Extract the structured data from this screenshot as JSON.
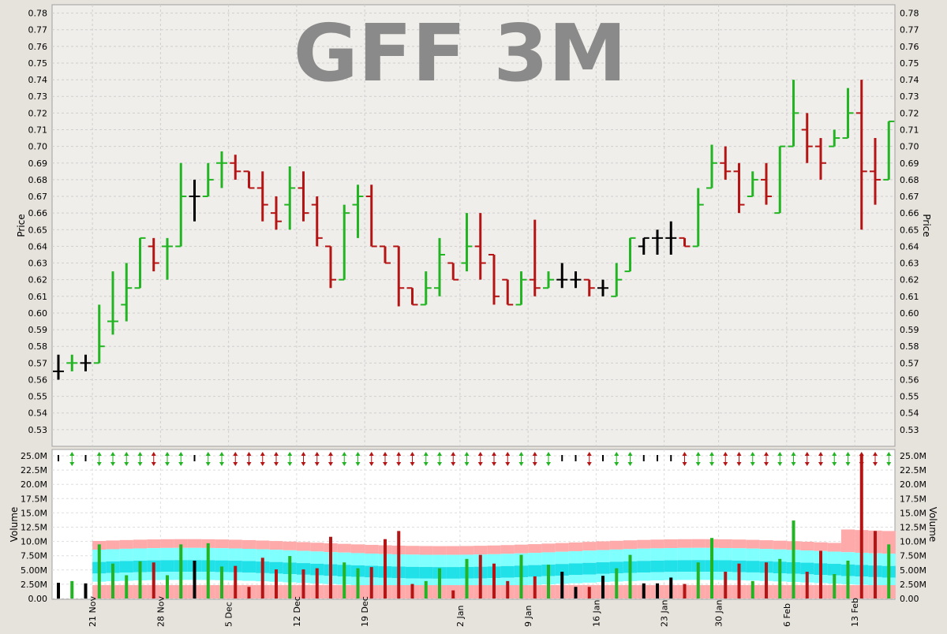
{
  "title": "GFF 3M",
  "colors": {
    "up": "#22b422",
    "down": "#b41414",
    "neutral": "#000000",
    "plot_bg": "#f0eeea",
    "volume_bg": "#ffffff",
    "band_outer": "#ffaaaa",
    "band_mid": "#80ffff",
    "band_inner": "#20e0e8",
    "title_color": "#8a8a8a"
  },
  "chart_data": [
    {
      "type": "ohlc",
      "title": "GFF 3M",
      "ylabel": "Price",
      "ylim": [
        0.52,
        0.785
      ],
      "y_ticks": [
        "0.53",
        "0.54",
        "0.55",
        "0.56",
        "0.57",
        "0.58",
        "0.59",
        "0.60",
        "0.61",
        "0.62",
        "0.63",
        "0.64",
        "0.65",
        "0.66",
        "0.67",
        "0.68",
        "0.69",
        "0.70",
        "0.71",
        "0.72",
        "0.73",
        "0.74",
        "0.75",
        "0.76",
        "0.77",
        "0.78"
      ],
      "x_date_labels": [
        "21 Nov",
        "28 Nov",
        "5 Dec",
        "12 Dec",
        "19 Dec",
        "2 Jan",
        "9 Jan",
        "16 Jan",
        "23 Jan",
        "30 Jan",
        "6 Feb",
        "13 Feb"
      ],
      "x_label_bar_index": [
        2.5,
        7.5,
        12.5,
        17.5,
        22.5,
        29.5,
        34.5,
        39.5,
        44.5,
        48.5,
        53.5,
        58.5
      ],
      "grid": true,
      "bars": [
        {
          "o": 0.565,
          "h": 0.575,
          "l": 0.56,
          "c": 0.565,
          "dir": "neutral"
        },
        {
          "o": 0.57,
          "h": 0.575,
          "l": 0.565,
          "c": 0.57,
          "dir": "up"
        },
        {
          "o": 0.57,
          "h": 0.575,
          "l": 0.565,
          "c": 0.57,
          "dir": "neutral"
        },
        {
          "o": 0.57,
          "h": 0.605,
          "l": 0.57,
          "c": 0.58,
          "dir": "up"
        },
        {
          "o": 0.595,
          "h": 0.625,
          "l": 0.587,
          "c": 0.595,
          "dir": "up"
        },
        {
          "o": 0.605,
          "h": 0.63,
          "l": 0.595,
          "c": 0.615,
          "dir": "up"
        },
        {
          "o": 0.615,
          "h": 0.645,
          "l": 0.615,
          "c": 0.645,
          "dir": "up"
        },
        {
          "o": 0.64,
          "h": 0.645,
          "l": 0.625,
          "c": 0.63,
          "dir": "down"
        },
        {
          "o": 0.64,
          "h": 0.645,
          "l": 0.62,
          "c": 0.64,
          "dir": "up"
        },
        {
          "o": 0.64,
          "h": 0.69,
          "l": 0.64,
          "c": 0.67,
          "dir": "up"
        },
        {
          "o": 0.67,
          "h": 0.68,
          "l": 0.655,
          "c": 0.67,
          "dir": "neutral"
        },
        {
          "o": 0.67,
          "h": 0.69,
          "l": 0.67,
          "c": 0.68,
          "dir": "up"
        },
        {
          "o": 0.69,
          "h": 0.697,
          "l": 0.675,
          "c": 0.69,
          "dir": "up"
        },
        {
          "o": 0.69,
          "h": 0.695,
          "l": 0.68,
          "c": 0.685,
          "dir": "down"
        },
        {
          "o": 0.685,
          "h": 0.685,
          "l": 0.675,
          "c": 0.675,
          "dir": "down"
        },
        {
          "o": 0.675,
          "h": 0.685,
          "l": 0.655,
          "c": 0.665,
          "dir": "down"
        },
        {
          "o": 0.66,
          "h": 0.67,
          "l": 0.65,
          "c": 0.655,
          "dir": "down"
        },
        {
          "o": 0.665,
          "h": 0.688,
          "l": 0.65,
          "c": 0.675,
          "dir": "up"
        },
        {
          "o": 0.675,
          "h": 0.685,
          "l": 0.655,
          "c": 0.66,
          "dir": "down"
        },
        {
          "o": 0.665,
          "h": 0.67,
          "l": 0.64,
          "c": 0.645,
          "dir": "down"
        },
        {
          "o": 0.64,
          "h": 0.64,
          "l": 0.615,
          "c": 0.62,
          "dir": "down"
        },
        {
          "o": 0.62,
          "h": 0.665,
          "l": 0.62,
          "c": 0.66,
          "dir": "up"
        },
        {
          "o": 0.665,
          "h": 0.677,
          "l": 0.645,
          "c": 0.67,
          "dir": "up"
        },
        {
          "o": 0.67,
          "h": 0.677,
          "l": 0.64,
          "c": 0.64,
          "dir": "down"
        },
        {
          "o": 0.64,
          "h": 0.64,
          "l": 0.63,
          "c": 0.63,
          "dir": "down"
        },
        {
          "o": 0.64,
          "h": 0.64,
          "l": 0.604,
          "c": 0.615,
          "dir": "down"
        },
        {
          "o": 0.615,
          "h": 0.615,
          "l": 0.605,
          "c": 0.605,
          "dir": "down"
        },
        {
          "o": 0.605,
          "h": 0.625,
          "l": 0.605,
          "c": 0.615,
          "dir": "up"
        },
        {
          "o": 0.615,
          "h": 0.645,
          "l": 0.61,
          "c": 0.635,
          "dir": "up"
        },
        {
          "o": 0.63,
          "h": 0.63,
          "l": 0.62,
          "c": 0.62,
          "dir": "down"
        },
        {
          "o": 0.63,
          "h": 0.66,
          "l": 0.625,
          "c": 0.64,
          "dir": "up"
        },
        {
          "o": 0.64,
          "h": 0.66,
          "l": 0.62,
          "c": 0.63,
          "dir": "down"
        },
        {
          "o": 0.635,
          "h": 0.635,
          "l": 0.605,
          "c": 0.61,
          "dir": "down"
        },
        {
          "o": 0.62,
          "h": 0.62,
          "l": 0.605,
          "c": 0.605,
          "dir": "down"
        },
        {
          "o": 0.605,
          "h": 0.625,
          "l": 0.605,
          "c": 0.62,
          "dir": "up"
        },
        {
          "o": 0.62,
          "h": 0.656,
          "l": 0.61,
          "c": 0.615,
          "dir": "down"
        },
        {
          "o": 0.615,
          "h": 0.625,
          "l": 0.615,
          "c": 0.62,
          "dir": "up"
        },
        {
          "o": 0.62,
          "h": 0.63,
          "l": 0.615,
          "c": 0.62,
          "dir": "neutral"
        },
        {
          "o": 0.62,
          "h": 0.625,
          "l": 0.615,
          "c": 0.62,
          "dir": "neutral"
        },
        {
          "o": 0.62,
          "h": 0.62,
          "l": 0.61,
          "c": 0.615,
          "dir": "down"
        },
        {
          "o": 0.615,
          "h": 0.62,
          "l": 0.61,
          "c": 0.615,
          "dir": "neutral"
        },
        {
          "o": 0.61,
          "h": 0.63,
          "l": 0.61,
          "c": 0.62,
          "dir": "up"
        },
        {
          "o": 0.625,
          "h": 0.645,
          "l": 0.625,
          "c": 0.645,
          "dir": "up"
        },
        {
          "o": 0.64,
          "h": 0.645,
          "l": 0.635,
          "c": 0.645,
          "dir": "neutral"
        },
        {
          "o": 0.645,
          "h": 0.65,
          "l": 0.635,
          "c": 0.645,
          "dir": "neutral"
        },
        {
          "o": 0.645,
          "h": 0.655,
          "l": 0.635,
          "c": 0.645,
          "dir": "neutral"
        },
        {
          "o": 0.645,
          "h": 0.645,
          "l": 0.64,
          "c": 0.64,
          "dir": "down"
        },
        {
          "o": 0.64,
          "h": 0.675,
          "l": 0.64,
          "c": 0.665,
          "dir": "up"
        },
        {
          "o": 0.675,
          "h": 0.701,
          "l": 0.675,
          "c": 0.69,
          "dir": "up"
        },
        {
          "o": 0.69,
          "h": 0.7,
          "l": 0.68,
          "c": 0.685,
          "dir": "down"
        },
        {
          "o": 0.685,
          "h": 0.69,
          "l": 0.66,
          "c": 0.665,
          "dir": "down"
        },
        {
          "o": 0.67,
          "h": 0.685,
          "l": 0.67,
          "c": 0.68,
          "dir": "up"
        },
        {
          "o": 0.68,
          "h": 0.69,
          "l": 0.665,
          "c": 0.67,
          "dir": "down"
        },
        {
          "o": 0.66,
          "h": 0.7,
          "l": 0.66,
          "c": 0.7,
          "dir": "up"
        },
        {
          "o": 0.7,
          "h": 0.74,
          "l": 0.7,
          "c": 0.72,
          "dir": "up"
        },
        {
          "o": 0.71,
          "h": 0.72,
          "l": 0.69,
          "c": 0.7,
          "dir": "down"
        },
        {
          "o": 0.7,
          "h": 0.705,
          "l": 0.68,
          "c": 0.69,
          "dir": "down"
        },
        {
          "o": 0.7,
          "h": 0.71,
          "l": 0.7,
          "c": 0.705,
          "dir": "up"
        },
        {
          "o": 0.705,
          "h": 0.735,
          "l": 0.705,
          "c": 0.72,
          "dir": "up"
        },
        {
          "o": 0.72,
          "h": 0.74,
          "l": 0.65,
          "c": 0.685,
          "dir": "down"
        },
        {
          "o": 0.685,
          "h": 0.705,
          "l": 0.665,
          "c": 0.68,
          "dir": "down"
        },
        {
          "o": 0.68,
          "h": 0.715,
          "l": 0.68,
          "c": 0.715,
          "dir": "up"
        }
      ]
    },
    {
      "type": "bar",
      "ylabel": "Volume",
      "ylim": [
        0,
        25600000
      ],
      "y_ticks": [
        "0.00",
        "2.50M",
        "5.00M",
        "7.50M",
        "10.0M",
        "12.5M",
        "15.0M",
        "17.5M",
        "20.0M",
        "22.5M",
        "25.0M"
      ],
      "volume": [
        2.7,
        3.0,
        2.6,
        9.3,
        6.0,
        4.0,
        6.4,
        6.2,
        4.0,
        9.3,
        6.5,
        9.5,
        5.5,
        5.6,
        2.0,
        7.0,
        5.0,
        7.3,
        5.0,
        5.2,
        10.6,
        6.2,
        5.2,
        5.4,
        10.2,
        11.6,
        2.5,
        3.0,
        5.2,
        1.4,
        6.8,
        7.5,
        6.0,
        3.0,
        7.5,
        3.8,
        5.8,
        4.6,
        2.0,
        2.0,
        3.9,
        5.2,
        7.5,
        2.6,
        2.6,
        3.6,
        2.5,
        6.2,
        10.4,
        4.6,
        6.0,
        3.0,
        6.2,
        6.8,
        13.4,
        4.6,
        8.2,
        4.2,
        6.5,
        24.8,
        11.6,
        9.3
      ],
      "volume_unit": "M",
      "band_start_index": 3
    }
  ]
}
